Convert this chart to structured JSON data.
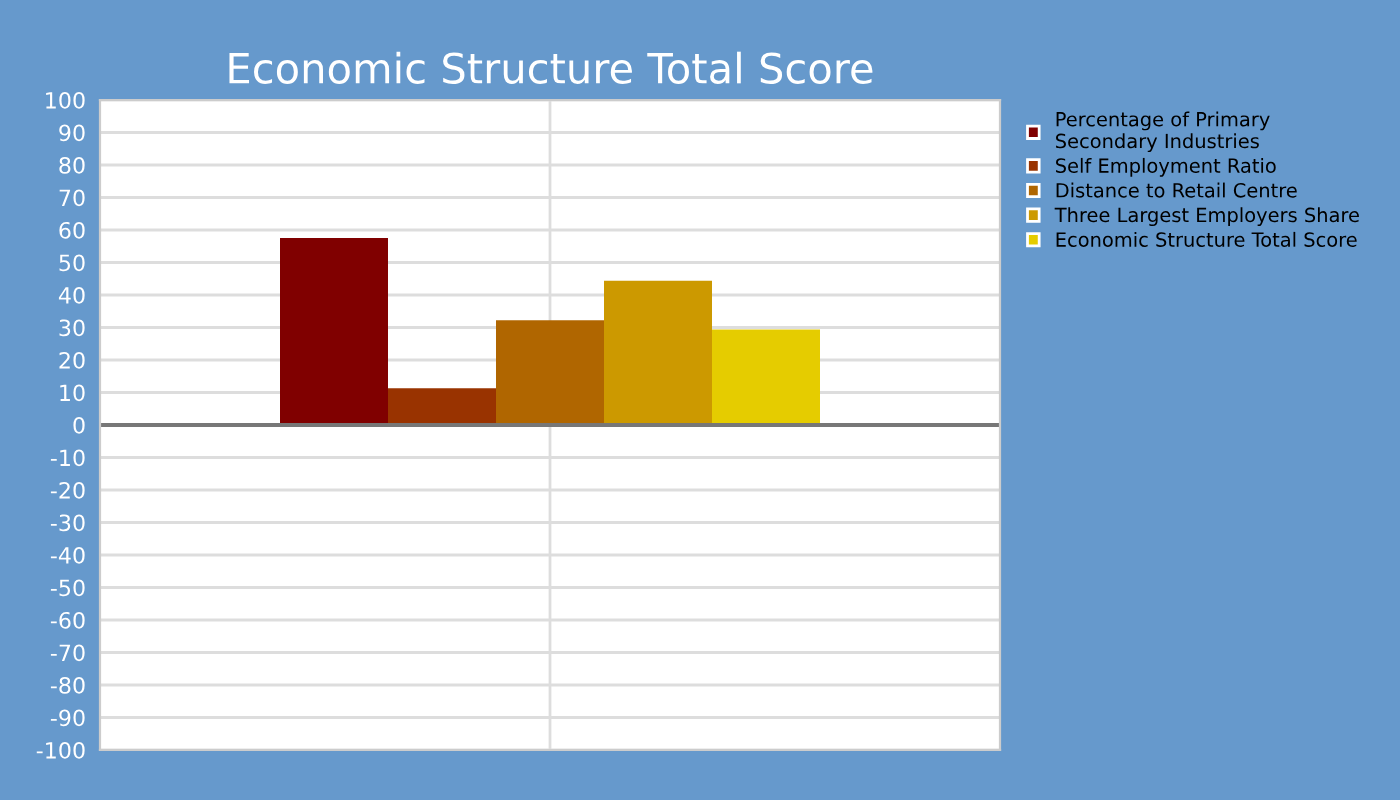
{
  "chart_data": {
    "type": "bar",
    "title": "Economic Structure Total Score",
    "categories": [
      null
    ],
    "series": [
      {
        "name": "Percentage of Primary Secondary Industries",
        "color": "#800000",
        "values": [
          57.5
        ]
      },
      {
        "name": "Self Employment Ratio",
        "color": "#993300",
        "values": [
          11.3
        ]
      },
      {
        "name": "Distance to Retail Centre",
        "color": "#b06600",
        "values": [
          32.2
        ]
      },
      {
        "name": "Three Largest Employers Share",
        "color": "#cc9900",
        "values": [
          44.4
        ]
      },
      {
        "name": "Economic Structure Total Score",
        "color": "#e5cc00",
        "values": [
          29.4
        ]
      }
    ],
    "ylim": [
      -100,
      100
    ],
    "yticks": [
      -100,
      -90,
      -80,
      -70,
      -60,
      -50,
      -40,
      -30,
      -20,
      -10,
      0,
      10,
      20,
      30,
      40,
      50,
      60,
      70,
      80,
      90,
      100
    ],
    "grid": true,
    "legend": "right"
  }
}
